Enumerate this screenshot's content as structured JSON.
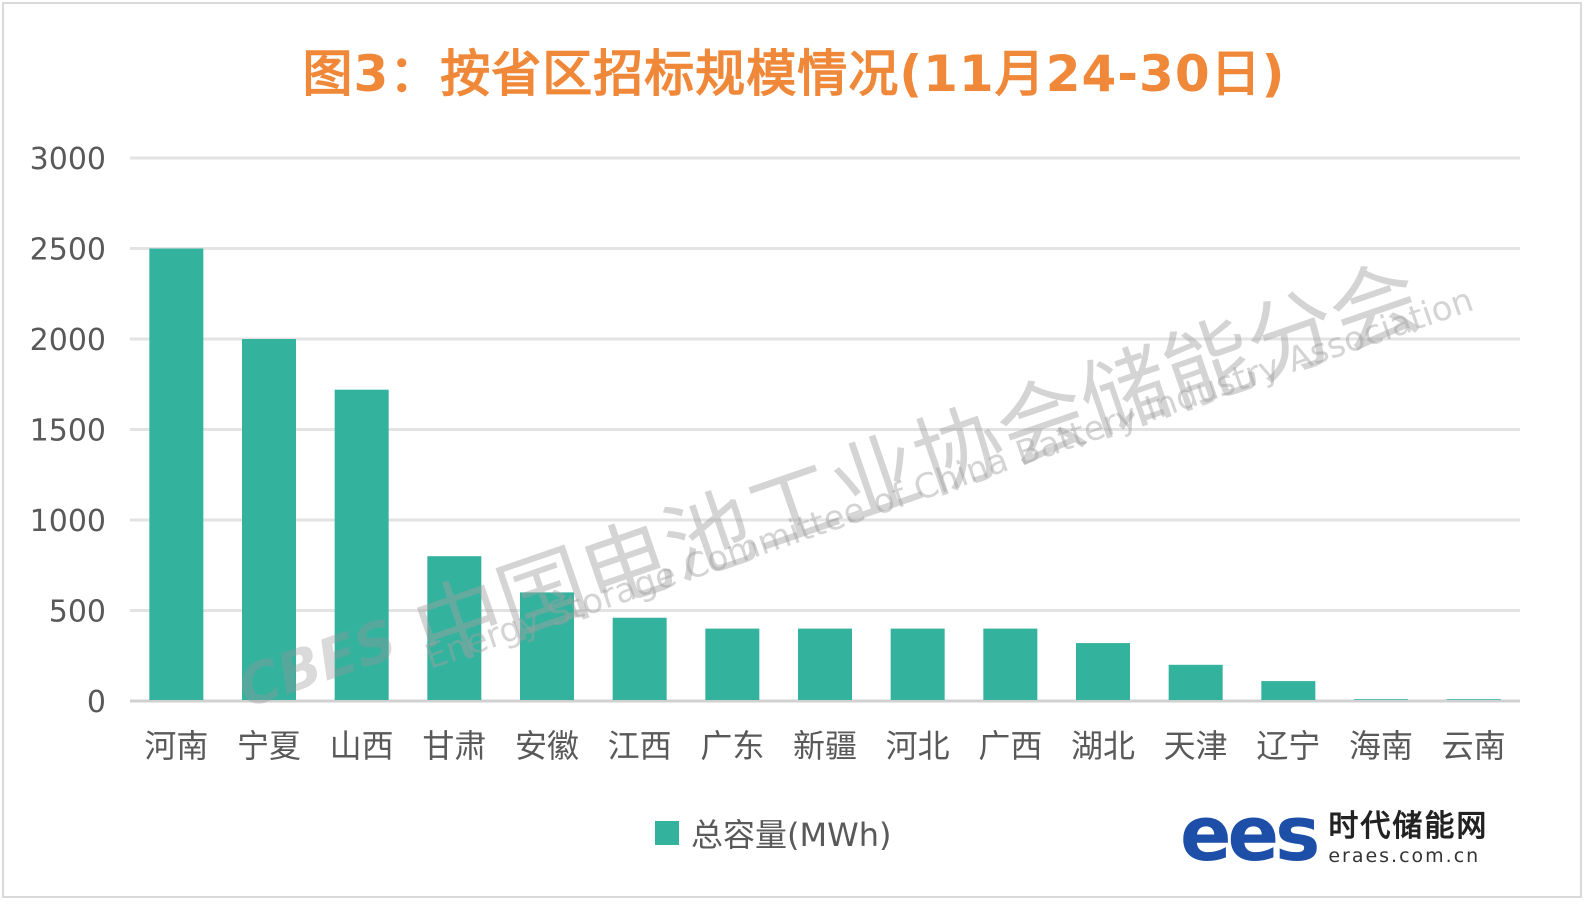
{
  "chart_data": {
    "type": "bar",
    "title": "图3：按省区招标规模情况(11月24-30日)",
    "categories": [
      "河南",
      "宁夏",
      "山西",
      "甘肃",
      "安徽",
      "江西",
      "广东",
      "新疆",
      "河北",
      "广西",
      "湖北",
      "天津",
      "辽宁",
      "海南",
      "云南"
    ],
    "series": [
      {
        "name": "总容量(MWh)",
        "values": [
          2500,
          2000,
          1720,
          800,
          600,
          460,
          400,
          400,
          400,
          400,
          320,
          200,
          110,
          10,
          10
        ],
        "color": "#33b29e"
      }
    ],
    "yticks": [
      "0",
      "500",
      "1000",
      "1500",
      "2000",
      "2500",
      "3000"
    ],
    "ylim": [
      0,
      3000
    ],
    "grid": true,
    "legend": "bottom",
    "xlabel": "",
    "ylabel": ""
  },
  "colors": {
    "title": "#f0883a",
    "bar": "#33b29e"
  },
  "watermark": {
    "cn": "中国电池工业协会储能分会",
    "en": "Energy Storage Committee of China Battery Industry Association",
    "logo": "CBES"
  },
  "logo": {
    "mark": "ees",
    "name": "时代储能网",
    "url": "eraes.com.cn"
  }
}
